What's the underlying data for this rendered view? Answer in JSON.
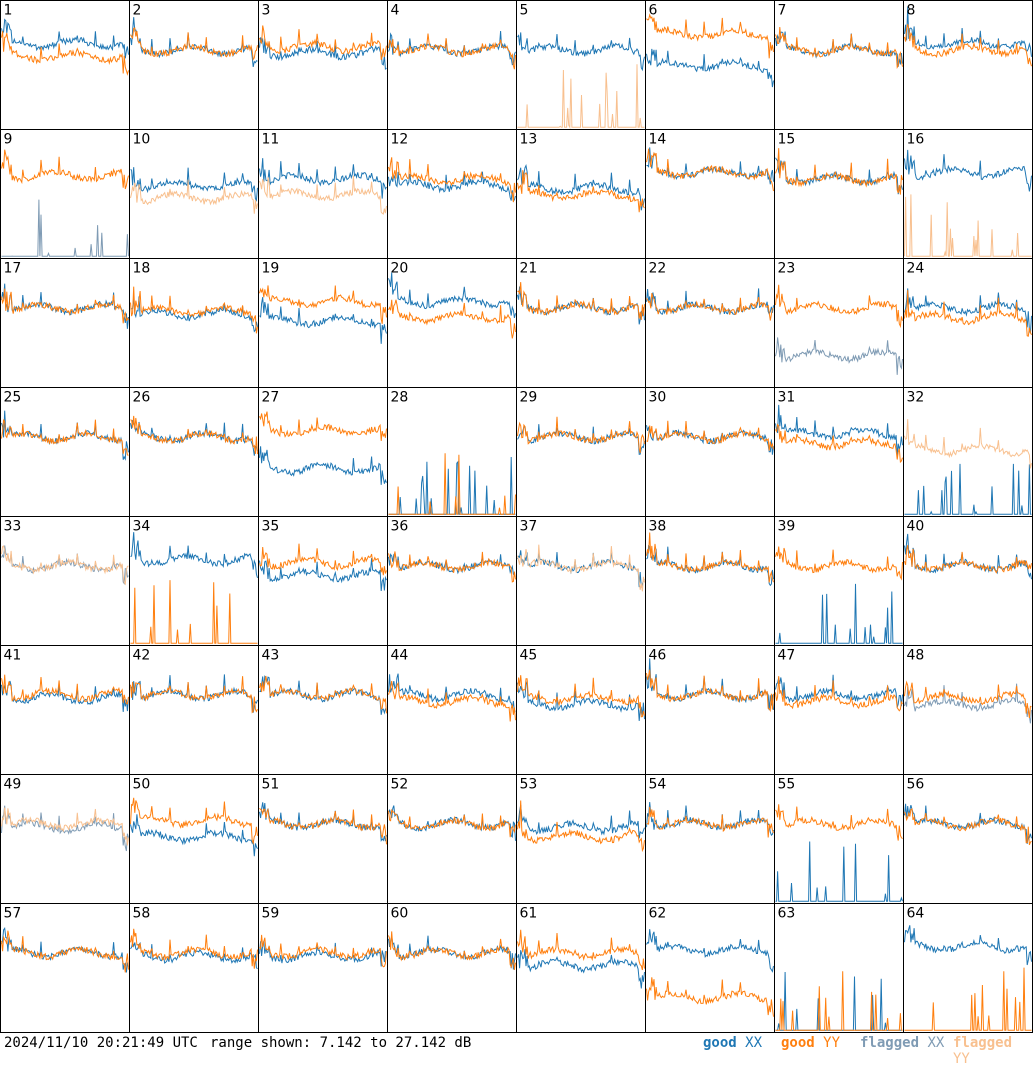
{
  "timestamp": "2024/11/10 20:21:49 UTC",
  "range_label": "range shown: 7.142 to 27.142 dB",
  "legend": {
    "good_xx": {
      "word": "good",
      "pol": "XX",
      "color": "#1f77b4"
    },
    "good_yy": {
      "word": "good",
      "pol": "YY",
      "color": "#ff7f0e"
    },
    "flagged_xx": {
      "word": "flagged",
      "pol": "XX",
      "color": "#7f9bb4"
    },
    "flagged_yy": {
      "word": "flagged",
      "pol": "YY",
      "color": "#f8c08f"
    }
  },
  "chart_data": {
    "type": "line",
    "grid": "8x8 small multiples, one panel per antenna",
    "y_range_db": [
      7.142,
      27.142
    ],
    "panels": [
      {
        "n": 1,
        "xx": "good",
        "yy": "good",
        "xx_level": 20.5,
        "yy_level": 18.5
      },
      {
        "n": 2,
        "xx": "good",
        "yy": "good",
        "xx_level": 19.5,
        "yy_level": 19.5
      },
      {
        "n": 3,
        "xx": "good",
        "yy": "good",
        "xx_level": 19.0,
        "yy_level": 20.0
      },
      {
        "n": 4,
        "xx": "good",
        "yy": "good",
        "xx_level": 19.5,
        "yy_level": 19.5
      },
      {
        "n": 5,
        "xx": "good",
        "yy": "flagged",
        "xx_level": 19.5,
        "yy_level": 7.5
      },
      {
        "n": 6,
        "xx": "good",
        "yy": "good",
        "xx_level": 17.0,
        "yy_level": 22.0
      },
      {
        "n": 7,
        "xx": "good",
        "yy": "good",
        "xx_level": 19.5,
        "yy_level": 19.5
      },
      {
        "n": 8,
        "xx": "good",
        "yy": "good",
        "xx_level": 20.5,
        "yy_level": 19.5
      },
      {
        "n": 9,
        "xx": "flagged",
        "yy": "good",
        "xx_level": 8.5,
        "yy_level": 20.0
      },
      {
        "n": 10,
        "xx": "good",
        "yy": "flagged",
        "xx_level": 18.5,
        "yy_level": 16.5
      },
      {
        "n": 11,
        "xx": "good",
        "yy": "flagged",
        "xx_level": 19.5,
        "yy_level": 17.0
      },
      {
        "n": 12,
        "xx": "good",
        "yy": "good",
        "xx_level": 18.5,
        "yy_level": 19.5
      },
      {
        "n": 13,
        "xx": "good",
        "yy": "good",
        "xx_level": 18.0,
        "yy_level": 17.0
      },
      {
        "n": 14,
        "xx": "good",
        "yy": "good",
        "xx_level": 20.5,
        "yy_level": 20.5
      },
      {
        "n": 15,
        "xx": "good",
        "yy": "good",
        "xx_level": 19.5,
        "yy_level": 19.5
      },
      {
        "n": 16,
        "xx": "good",
        "yy": "flagged",
        "xx_level": 20.5,
        "yy_level": 7.5
      },
      {
        "n": 17,
        "xx": "good",
        "yy": "good",
        "xx_level": 19.5,
        "yy_level": 19.5
      },
      {
        "n": 18,
        "xx": "good",
        "yy": "good",
        "xx_level": 18.5,
        "yy_level": 19.0
      },
      {
        "n": 19,
        "xx": "good",
        "yy": "good",
        "xx_level": 17.5,
        "yy_level": 20.5
      },
      {
        "n": 20,
        "xx": "good",
        "yy": "good",
        "xx_level": 20.5,
        "yy_level": 18.0
      },
      {
        "n": 21,
        "xx": "good",
        "yy": "good",
        "xx_level": 19.5,
        "yy_level": 19.5
      },
      {
        "n": 22,
        "xx": "good",
        "yy": "good",
        "xx_level": 19.5,
        "yy_level": 19.5
      },
      {
        "n": 23,
        "xx": "flagged",
        "yy": "good",
        "xx_level": 12.0,
        "yy_level": 19.5
      },
      {
        "n": 24,
        "xx": "good",
        "yy": "good",
        "xx_level": 19.5,
        "yy_level": 18.0
      },
      {
        "n": 25,
        "xx": "good",
        "yy": "good",
        "xx_level": 19.5,
        "yy_level": 19.5
      },
      {
        "n": 26,
        "xx": "good",
        "yy": "good",
        "xx_level": 19.5,
        "yy_level": 19.5
      },
      {
        "n": 27,
        "xx": "good",
        "yy": "good",
        "xx_level": 14.5,
        "yy_level": 20.5
      },
      {
        "n": 28,
        "xx": "good",
        "yy": "good",
        "xx_level": 7.3,
        "yy_level": 7.3
      },
      {
        "n": 29,
        "xx": "good",
        "yy": "good",
        "xx_level": 19.5,
        "yy_level": 19.5
      },
      {
        "n": 30,
        "xx": "good",
        "yy": "good",
        "xx_level": 19.5,
        "yy_level": 19.5
      },
      {
        "n": 31,
        "xx": "good",
        "yy": "good",
        "xx_level": 20.0,
        "yy_level": 18.5
      },
      {
        "n": 32,
        "xx": "good",
        "yy": "flagged",
        "xx_level": 7.3,
        "yy_level": 17.5
      },
      {
        "n": 33,
        "xx": "flagged",
        "yy": "flagged",
        "xx_level": 19.5,
        "yy_level": 19.5
      },
      {
        "n": 34,
        "xx": "good",
        "yy": "good",
        "xx_level": 20.5,
        "yy_level": 7.5
      },
      {
        "n": 35,
        "xx": "good",
        "yy": "good",
        "xx_level": 18.0,
        "yy_level": 20.0
      },
      {
        "n": 36,
        "xx": "good",
        "yy": "good",
        "xx_level": 19.5,
        "yy_level": 19.5
      },
      {
        "n": 37,
        "xx": "good",
        "yy": "flagged",
        "xx_level": 19.5,
        "yy_level": 19.5
      },
      {
        "n": 38,
        "xx": "good",
        "yy": "good",
        "xx_level": 19.5,
        "yy_level": 19.5
      },
      {
        "n": 39,
        "xx": "good",
        "yy": "good",
        "xx_level": 7.5,
        "yy_level": 19.5
      },
      {
        "n": 40,
        "xx": "good",
        "yy": "good",
        "xx_level": 19.5,
        "yy_level": 19.5
      },
      {
        "n": 41,
        "xx": "good",
        "yy": "good",
        "xx_level": 19.0,
        "yy_level": 19.5
      },
      {
        "n": 42,
        "xx": "good",
        "yy": "good",
        "xx_level": 19.5,
        "yy_level": 19.5
      },
      {
        "n": 43,
        "xx": "good",
        "yy": "good",
        "xx_level": 19.5,
        "yy_level": 19.5
      },
      {
        "n": 44,
        "xx": "good",
        "yy": "good",
        "xx_level": 19.5,
        "yy_level": 18.5
      },
      {
        "n": 45,
        "xx": "good",
        "yy": "good",
        "xx_level": 18.0,
        "yy_level": 19.0
      },
      {
        "n": 46,
        "xx": "good",
        "yy": "good",
        "xx_level": 19.5,
        "yy_level": 19.5
      },
      {
        "n": 47,
        "xx": "good",
        "yy": "good",
        "xx_level": 19.5,
        "yy_level": 18.5
      },
      {
        "n": 48,
        "xx": "flagged",
        "yy": "good",
        "xx_level": 18.0,
        "yy_level": 19.0
      },
      {
        "n": 49,
        "xx": "flagged",
        "yy": "flagged",
        "xx_level": 19.0,
        "yy_level": 19.5
      },
      {
        "n": 50,
        "xx": "good",
        "yy": "good",
        "xx_level": 17.5,
        "yy_level": 20.0
      },
      {
        "n": 51,
        "xx": "good",
        "yy": "good",
        "xx_level": 19.5,
        "yy_level": 19.5
      },
      {
        "n": 52,
        "xx": "good",
        "yy": "good",
        "xx_level": 19.5,
        "yy_level": 19.5
      },
      {
        "n": 53,
        "xx": "good",
        "yy": "good",
        "xx_level": 19.0,
        "yy_level": 17.5
      },
      {
        "n": 54,
        "xx": "good",
        "yy": "good",
        "xx_level": 19.5,
        "yy_level": 19.5
      },
      {
        "n": 55,
        "xx": "good",
        "yy": "good",
        "xx_level": 7.5,
        "yy_level": 19.5
      },
      {
        "n": 56,
        "xx": "good",
        "yy": "good",
        "xx_level": 19.5,
        "yy_level": 19.5
      },
      {
        "n": 57,
        "xx": "good",
        "yy": "good",
        "xx_level": 19.5,
        "yy_level": 19.5
      },
      {
        "n": 58,
        "xx": "good",
        "yy": "good",
        "xx_level": 19.0,
        "yy_level": 19.5
      },
      {
        "n": 59,
        "xx": "good",
        "yy": "good",
        "xx_level": 19.0,
        "yy_level": 19.5
      },
      {
        "n": 60,
        "xx": "good",
        "yy": "good",
        "xx_level": 19.5,
        "yy_level": 19.5
      },
      {
        "n": 61,
        "xx": "good",
        "yy": "good",
        "xx_level": 17.5,
        "yy_level": 19.5
      },
      {
        "n": 62,
        "xx": "good",
        "yy": "good",
        "xx_level": 20.0,
        "yy_level": 12.5
      },
      {
        "n": 63,
        "xx": "good",
        "yy": "good",
        "xx_level": 7.3,
        "yy_level": 7.5
      },
      {
        "n": 64,
        "xx": "good",
        "yy": "good",
        "xx_level": 20.5,
        "yy_level": 7.3
      }
    ]
  }
}
